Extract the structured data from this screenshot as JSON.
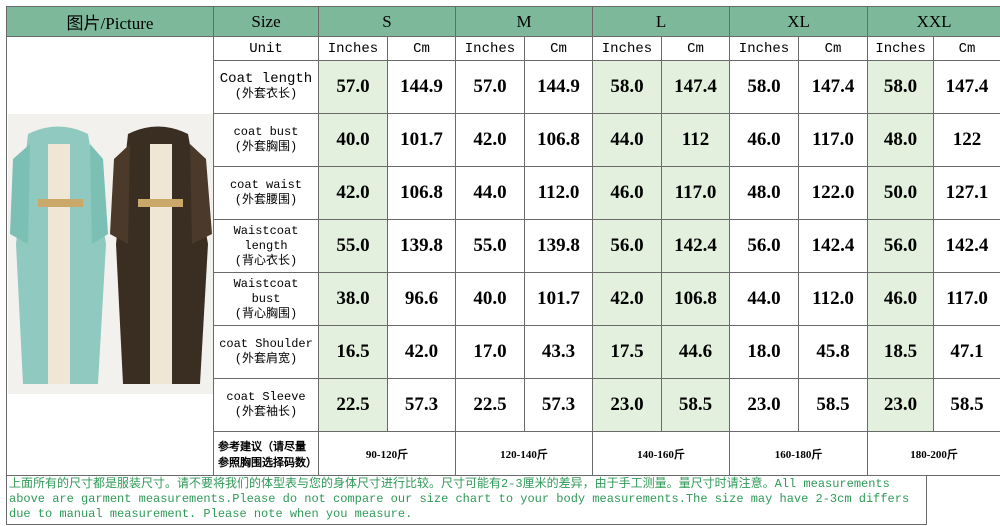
{
  "header": {
    "picture_label": "图片/Picture",
    "size_label": "Size",
    "sizes": [
      "S",
      "M",
      "L",
      "XL",
      "XXL"
    ]
  },
  "unit_row": {
    "label": "Unit",
    "units": [
      "Inches",
      "Cm",
      "Inches",
      "Cm",
      "Inches",
      "Cm",
      "Inches",
      "Cm",
      "Inches",
      "Cm"
    ]
  },
  "rows": [
    {
      "label": [
        "Coat length",
        "(外套衣长)"
      ],
      "values": [
        "57.0",
        "144.9",
        "57.0",
        "144.9",
        "58.0",
        "147.4",
        "58.0",
        "147.4",
        "58.0",
        "147.4"
      ]
    },
    {
      "label": [
        "coat bust",
        "(外套胸围)"
      ],
      "values": [
        "40.0",
        "101.7",
        "42.0",
        "106.8",
        "44.0",
        "112",
        "46.0",
        "117.0",
        "48.0",
        "122"
      ]
    },
    {
      "label": [
        "coat waist",
        "(外套腰围)"
      ],
      "values": [
        "42.0",
        "106.8",
        "44.0",
        "112.0",
        "46.0",
        "117.0",
        "48.0",
        "122.0",
        "50.0",
        "127.1"
      ]
    },
    {
      "label": [
        "Waistcoat length",
        "(背心衣长)"
      ],
      "values": [
        "55.0",
        "139.8",
        "55.0",
        "139.8",
        "56.0",
        "142.4",
        "56.0",
        "142.4",
        "56.0",
        "142.4"
      ]
    },
    {
      "label": [
        "Waistcoat bust",
        "(背心胸围)"
      ],
      "values": [
        "38.0",
        "96.6",
        "40.0",
        "101.7",
        "42.0",
        "106.8",
        "44.0",
        "112.0",
        "46.0",
        "117.0"
      ]
    },
    {
      "label": [
        "coat Shoulder",
        "(外套肩宽)"
      ],
      "values": [
        "16.5",
        "42.0",
        "17.0",
        "43.3",
        "17.5",
        "44.6",
        "18.0",
        "45.8",
        "18.5",
        "47.1"
      ]
    },
    {
      "label": [
        "coat Sleeve",
        "(外套袖长)"
      ],
      "values": [
        "22.5",
        "57.3",
        "22.5",
        "57.3",
        "23.0",
        "58.5",
        "23.0",
        "58.5",
        "23.0",
        "58.5"
      ]
    }
  ],
  "weight_row": {
    "label": "参考建议（请尽量参照胸围选择码数）",
    "values": [
      "90-120斤",
      "120-140斤",
      "140-160斤",
      "160-180斤",
      "180-200斤"
    ]
  },
  "footer": "上面所有的尺寸都是服装尺寸。请不要将我们的体型表与您的身体尺寸进行比较。尺寸可能有2-3厘米的差异，由于手工测量。量尺寸时请注意。All measurements above are garment measurements.Please do not compare our size chart to your body measurements.The size may have 2-3cm differs due to manual measurement. Please note when you measure."
}
